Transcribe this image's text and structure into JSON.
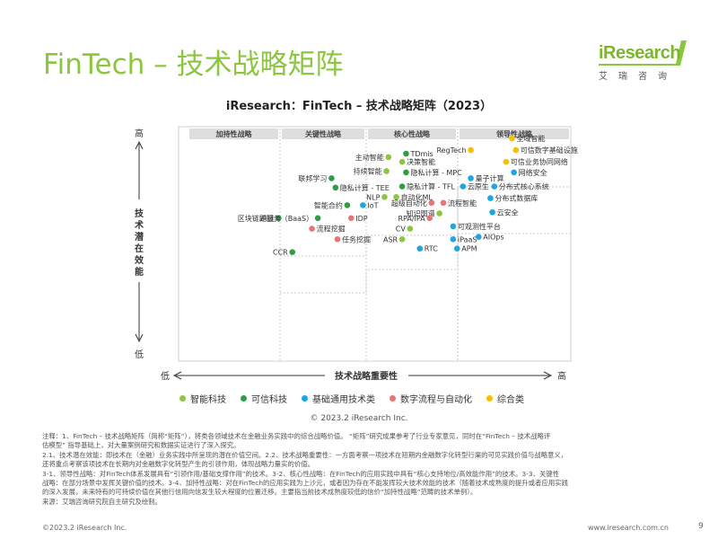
{
  "page": {
    "title": "FinTech – 技术战略矩阵",
    "logo_text": "iResearch",
    "logo_sub": "艾瑞咨询",
    "copyright": "© 2023.2 iResearch Inc.",
    "notes": [
      "注释：1、FinTech – 技术战略矩阵（简称“矩阵”），将类各领域技术在金融业务实践中的综合战略价值。 “矩阵”研究成果参考了行业专家意见，同时在“FinTech – 技术战略评",
      "估模型” 指导基础上，对大量案例研究和数据实证进行了深入探究。",
      "2.1、技术潜在效能：即技术在（金融）业务实践中所呈现的潜在价值空间。2.2、技术战略重要性：一方面考察一项技术在短期内金融数字化转型行渠的可见实践价值与战略意义，",
      "还将重点考察该项技术在长期内对金融数字化转型产生的引领作用，体现战略力量实的价值。",
      "3-1、领导性战略：对FinTech体系发展具有“引领作用/基础支撑作用”的技术。3-2、核心性战略：在FinTech的应用实践中具有“核心支持地位/高效能作用”的技术。3-3、关键性",
      "战略：在部分场景中发挥关键价值的技术。3-4、加持性战略：对在FinTech的应用实践为上沙元，或者因为存在不能发挥较大技术效能的技术（随着技术成熟度的提升或者应用实践",
      "的深入发展，未来特有的可持续价值在其他行信用向信发生较大程度的位置迁移。主要指当前技术成熟度较低的信价“加持性战略”范畴的技术单例）。",
      "来源：艾瑞咨询研究院自主研究及绘制。"
    ],
    "footer_left": "©2023.2 iResearch Inc.",
    "footer_right": "www.iresearch.com.cn",
    "page_number": "9"
  },
  "chart_data": {
    "type": "scatter",
    "title": "iResearch：FinTech – 技术战略矩阵（2023）",
    "xlabel": "技术战略重要性",
    "ylabel": "技术潜在效能",
    "x_low": "低",
    "x_high": "高",
    "y_low": "低",
    "y_high": "高",
    "xlim": [
      0,
      100
    ],
    "ylim": [
      0,
      100
    ],
    "zones": [
      "加持性战略",
      "关键性战略",
      "核心性战略",
      "领导性战略"
    ],
    "categories": [
      {
        "name": "智能科技",
        "color": "#8cc63f"
      },
      {
        "name": "可信科技",
        "color": "#2e9e44"
      },
      {
        "name": "基础通用技术类",
        "color": "#1ea6e0"
      },
      {
        "name": "数字流程与自动化",
        "color": "#e87474"
      },
      {
        "name": "综合类",
        "color": "#f5c000"
      }
    ],
    "points": [
      {
        "label": "全域智能",
        "category": 4,
        "x": 85.0,
        "y": 95.0,
        "pos": "right"
      },
      {
        "label": "RegTech",
        "category": 4,
        "x": 74.5,
        "y": 90.0,
        "pos": "left"
      },
      {
        "label": "可信数字基础设施",
        "category": 4,
        "x": 86.0,
        "y": 90.0,
        "pos": "right"
      },
      {
        "label": "TDmis",
        "category": 1,
        "x": 58.0,
        "y": 88.5,
        "pos": "right"
      },
      {
        "label": "主动智能",
        "category": 0,
        "x": 53.5,
        "y": 87.0,
        "pos": "left"
      },
      {
        "label": "决策智能",
        "category": 0,
        "x": 57.0,
        "y": 85.0,
        "pos": "right"
      },
      {
        "label": "可信业务协同网络",
        "category": 4,
        "x": 83.5,
        "y": 85.0,
        "pos": "right"
      },
      {
        "label": "持续智能",
        "category": 0,
        "x": 53.0,
        "y": 81.0,
        "pos": "left"
      },
      {
        "label": "隐私计算 - MPC",
        "category": 1,
        "x": 58.0,
        "y": 80.5,
        "pos": "right"
      },
      {
        "label": "网络安全",
        "category": 2,
        "x": 85.5,
        "y": 80.5,
        "pos": "right"
      },
      {
        "label": "联邦学习",
        "category": 1,
        "x": 39.0,
        "y": 78.0,
        "pos": "left"
      },
      {
        "label": "量子计算",
        "category": 2,
        "x": 74.5,
        "y": 78.0,
        "pos": "right"
      },
      {
        "label": "隐私计算 - TEE",
        "category": 1,
        "x": 40.0,
        "y": 74.0,
        "pos": "right"
      },
      {
        "label": "隐私计算 - TFL",
        "category": 1,
        "x": 57.0,
        "y": 74.5,
        "pos": "right"
      },
      {
        "label": "云原生",
        "category": 2,
        "x": 72.5,
        "y": 74.5,
        "pos": "right"
      },
      {
        "label": "分布式核心系统",
        "category": 2,
        "x": 80.5,
        "y": 74.5,
        "pos": "right"
      },
      {
        "label": "NLP",
        "category": 0,
        "x": 52.5,
        "y": 70.0,
        "pos": "left"
      },
      {
        "label": "自动化ML",
        "category": 0,
        "x": 55.5,
        "y": 70.0,
        "pos": "right"
      },
      {
        "label": "分布式数据库",
        "category": 2,
        "x": 79.5,
        "y": 69.5,
        "pos": "right"
      },
      {
        "label": "智能合约",
        "category": 1,
        "x": 43.0,
        "y": 66.5,
        "pos": "left"
      },
      {
        "label": "IoT",
        "category": 2,
        "x": 47.0,
        "y": 66.5,
        "pos": "right"
      },
      {
        "label": "超级自动化",
        "category": 3,
        "x": 64.5,
        "y": 67.5,
        "pos": "left"
      },
      {
        "label": "流程智能",
        "category": 3,
        "x": 67.5,
        "y": 67.5,
        "pos": "right"
      },
      {
        "label": "云安全",
        "category": 2,
        "x": 80.0,
        "y": 63.5,
        "pos": "right"
      },
      {
        "label": "知识图谱",
        "category": 0,
        "x": 66.5,
        "y": 63.0,
        "pos": "left"
      },
      {
        "label": "跨链",
        "category": 1,
        "x": 25.5,
        "y": 61.0,
        "pos": "left"
      },
      {
        "label": "区块链即服务（BaaS）",
        "category": 1,
        "x": 35.5,
        "y": 61.0,
        "pos": "left"
      },
      {
        "label": "IDP",
        "category": 3,
        "x": 44.0,
        "y": 61.0,
        "pos": "right"
      },
      {
        "label": "RPA/IPA",
        "category": 3,
        "x": 64.0,
        "y": 61.0,
        "pos": "left"
      },
      {
        "label": "可观测性平台",
        "category": 2,
        "x": 70.0,
        "y": 57.5,
        "pos": "right"
      },
      {
        "label": "流程挖掘",
        "category": 3,
        "x": 34.0,
        "y": 56.5,
        "pos": "right"
      },
      {
        "label": "CV",
        "category": 0,
        "x": 59.0,
        "y": 56.5,
        "pos": "left"
      },
      {
        "label": "AIOps",
        "category": 2,
        "x": 76.5,
        "y": 53.0,
        "pos": "right"
      },
      {
        "label": "任务挖掘",
        "category": 3,
        "x": 40.5,
        "y": 52.0,
        "pos": "right"
      },
      {
        "label": "ASR",
        "category": 0,
        "x": 57.0,
        "y": 52.0,
        "pos": "left"
      },
      {
        "label": "iPaaS",
        "category": 2,
        "x": 70.0,
        "y": 52.0,
        "pos": "right"
      },
      {
        "label": "RTC",
        "category": 2,
        "x": 61.5,
        "y": 48.0,
        "pos": "right"
      },
      {
        "label": "APM",
        "category": 2,
        "x": 71.0,
        "y": 48.0,
        "pos": "right"
      },
      {
        "label": "CCR",
        "category": 1,
        "x": 29.0,
        "y": 46.5,
        "pos": "left"
      }
    ]
  }
}
